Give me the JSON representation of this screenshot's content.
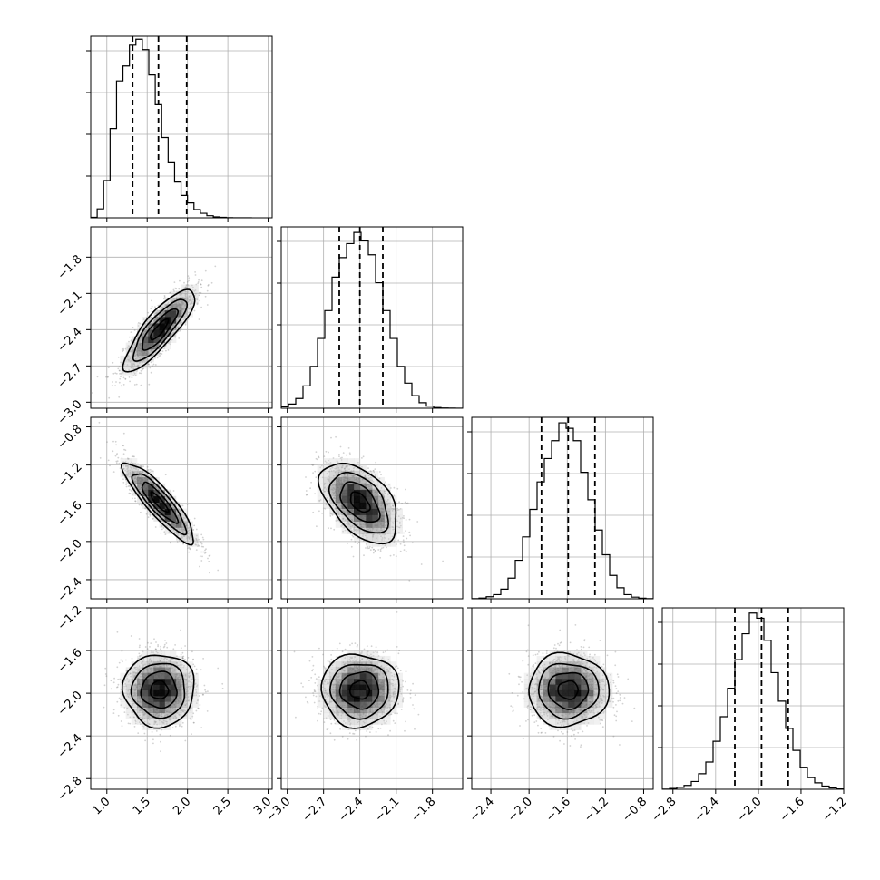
{
  "chart_data": {
    "type": "corner",
    "n_params": 4,
    "grid": true,
    "axes_ranges": [
      [
        0.8,
        3.05
      ],
      [
        -3.05,
        -1.55
      ],
      [
        -2.6,
        -0.7
      ],
      [
        -2.9,
        -1.2
      ]
    ],
    "ticks": [
      [
        1.0,
        1.5,
        2.0,
        2.5,
        3.0
      ],
      [
        -3.0,
        -2.7,
        -2.4,
        -2.1,
        -1.8
      ],
      [
        -2.4,
        -2.0,
        -1.6,
        -1.2,
        -0.8
      ],
      [
        -2.8,
        -2.4,
        -2.0,
        -1.6,
        -1.2
      ]
    ],
    "tick_labels": [
      [
        "1.0",
        "1.5",
        "2.0",
        "2.5",
        "3.0"
      ],
      [
        "−3.0",
        "−2.7",
        "−2.4",
        "−2.1",
        "−1.8"
      ],
      [
        "−2.4",
        "−2.0",
        "−1.6",
        "−1.2",
        "−0.8"
      ],
      [
        "−2.8",
        "−2.4",
        "−2.0",
        "−1.6",
        "−1.2"
      ]
    ],
    "histograms": [
      {
        "bin_start": 0.8,
        "bin_width": 0.08,
        "max_count": 1220,
        "counts": [
          3,
          60,
          250,
          600,
          920,
          1020,
          1160,
          1200,
          1130,
          960,
          760,
          540,
          370,
          240,
          150,
          100,
          55,
          30,
          14,
          6,
          3,
          1,
          0,
          0,
          0
        ]
      },
      {
        "bin_start": -3.05,
        "bin_width": 0.06,
        "max_count": 1300,
        "counts": [
          10,
          30,
          70,
          160,
          300,
          500,
          700,
          940,
          1080,
          1180,
          1260,
          1200,
          1100,
          900,
          700,
          500,
          300,
          180,
          90,
          40,
          15,
          5,
          2,
          1,
          0
        ]
      },
      {
        "bin_start": -2.6,
        "bin_width": 0.076,
        "max_count": 1320,
        "counts": [
          1,
          5,
          15,
          30,
          70,
          150,
          280,
          450,
          650,
          850,
          1020,
          1150,
          1280,
          1240,
          1150,
          920,
          720,
          500,
          320,
          170,
          80,
          30,
          12,
          4,
          1
        ]
      },
      {
        "bin_start": -2.9,
        "bin_width": 0.068,
        "max_count": 1400,
        "counts": [
          1,
          6,
          15,
          30,
          60,
          120,
          210,
          370,
          560,
          780,
          1000,
          1200,
          1360,
          1320,
          1150,
          900,
          680,
          470,
          300,
          170,
          90,
          50,
          25,
          10,
          3
        ]
      }
    ],
    "quantiles": [
      [
        1.32,
        1.64,
        1.99
      ],
      [
        -2.57,
        -2.4,
        -2.21
      ],
      [
        -1.87,
        -1.59,
        -1.31
      ],
      [
        -2.22,
        -1.97,
        -1.72
      ]
    ],
    "pairs": [
      {
        "row": 1,
        "col": 0,
        "mean": [
          1.65,
          -2.4
        ],
        "sd": [
          0.22,
          0.17
        ],
        "rho": 0.84
      },
      {
        "row": 2,
        "col": 0,
        "mean": [
          1.65,
          -1.59
        ],
        "sd": [
          0.22,
          0.21
        ],
        "rho": -0.88
      },
      {
        "row": 2,
        "col": 1,
        "mean": [
          -2.4,
          -1.59
        ],
        "sd": [
          0.16,
          0.21
        ],
        "rho": -0.5
      },
      {
        "row": 3,
        "col": 0,
        "mean": [
          1.65,
          -1.97
        ],
        "sd": [
          0.22,
          0.17
        ],
        "rho": 0.0
      },
      {
        "row": 3,
        "col": 1,
        "mean": [
          -2.4,
          -1.97
        ],
        "sd": [
          0.16,
          0.17
        ],
        "rho": 0.0
      },
      {
        "row": 3,
        "col": 2,
        "mean": [
          -1.59,
          -1.97
        ],
        "sd": [
          0.21,
          0.17
        ],
        "rho": 0.0
      }
    ],
    "contour_levels_sigma": [
      0.5,
      1.0,
      1.5,
      2.0
    ]
  }
}
